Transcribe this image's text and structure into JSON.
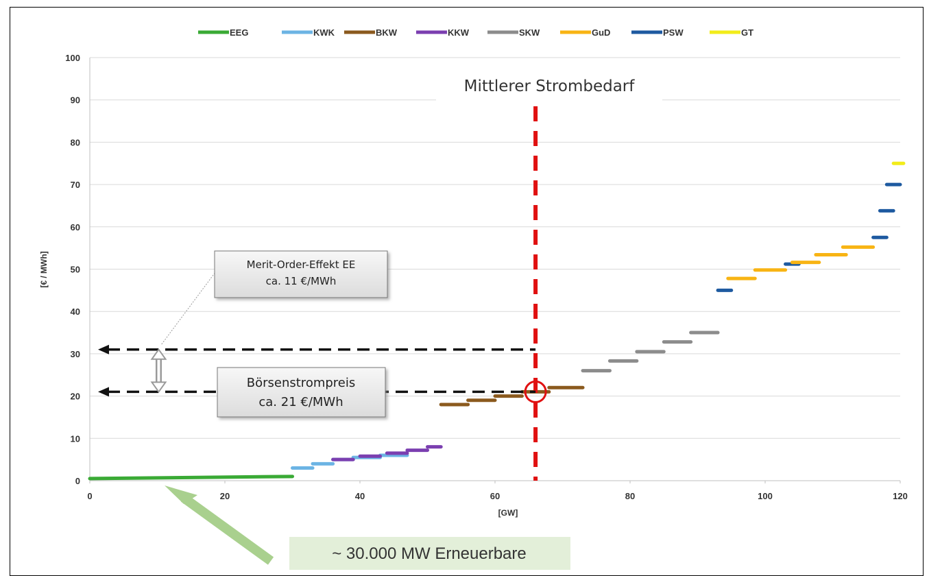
{
  "chart_data": {
    "type": "line",
    "xlabel": "[GW]",
    "ylabel": "[€ / MWh]",
    "xlim": [
      0,
      120
    ],
    "ylim": [
      0,
      100
    ],
    "x_ticks": [
      "0",
      "20",
      "40",
      "60",
      "80",
      "100",
      "120"
    ],
    "y_ticks": [
      "0",
      "10",
      "20",
      "30",
      "40",
      "50",
      "60",
      "70",
      "80",
      "90",
      "100"
    ],
    "grid": "horizontal",
    "legend_position": "top",
    "legend": [
      {
        "name": "EEG",
        "color": "#3aaa35"
      },
      {
        "name": "KWK",
        "color": "#6cb4e4"
      },
      {
        "name": "BKW",
        "color": "#8b5a1e"
      },
      {
        "name": "KKW",
        "color": "#7b3fb0"
      },
      {
        "name": "SKW",
        "color": "#8c8c8c"
      },
      {
        "name": "GuD",
        "color": "#f8b414"
      },
      {
        "name": "PSW",
        "color": "#1e5aa0"
      },
      {
        "name": "GT",
        "color": "#f2ec1a"
      }
    ],
    "series": [
      {
        "name": "EEG",
        "color": "#3aaa35",
        "segments": [
          [
            0,
            30,
            0.5,
            1.0
          ]
        ]
      },
      {
        "name": "KWK",
        "color": "#6cb4e4",
        "segments": [
          [
            30,
            33,
            3,
            3
          ],
          [
            33,
            36,
            4,
            4
          ],
          [
            36,
            39,
            5,
            5
          ],
          [
            39,
            43,
            5.5,
            5.5
          ],
          [
            43,
            47,
            6,
            6
          ]
        ]
      },
      {
        "name": "KKW",
        "color": "#7b3fb0",
        "segments": [
          [
            36,
            39,
            5,
            5
          ],
          [
            40,
            43,
            5.8,
            5.8
          ],
          [
            44,
            47,
            6.5,
            6.5
          ],
          [
            47,
            50,
            7.2,
            7.2
          ],
          [
            50,
            52,
            8,
            8
          ]
        ]
      },
      {
        "name": "BKW",
        "color": "#8b5a1e",
        "segments": [
          [
            52,
            56,
            18,
            18
          ],
          [
            56,
            60,
            19,
            19
          ],
          [
            60,
            64,
            20,
            20
          ],
          [
            64,
            68,
            21,
            21
          ],
          [
            68,
            73,
            22,
            22
          ]
        ]
      },
      {
        "name": "SKW",
        "color": "#8c8c8c",
        "segments": [
          [
            73,
            77,
            26,
            26
          ],
          [
            77,
            81,
            28.3,
            28.3
          ],
          [
            81,
            85,
            30.5,
            30.5
          ],
          [
            85,
            89,
            32.8,
            32.8
          ],
          [
            89,
            93,
            35,
            35
          ]
        ]
      },
      {
        "name": "PSW",
        "color": "#1e5aa0",
        "segments": [
          [
            93,
            95,
            45,
            45
          ],
          [
            103,
            105,
            51.2,
            51.2
          ],
          [
            116,
            118,
            57.5,
            57.5
          ],
          [
            117,
            119,
            63.8,
            63.8
          ],
          [
            118,
            120,
            70,
            70
          ]
        ]
      },
      {
        "name": "GuD",
        "color": "#f8b414",
        "segments": [
          [
            94.5,
            98.5,
            47.8,
            47.8
          ],
          [
            98.5,
            103,
            49.8,
            49.8
          ],
          [
            104,
            108,
            51.6,
            51.6
          ],
          [
            107.5,
            112,
            53.4,
            53.4
          ],
          [
            111.5,
            116,
            55.2,
            55.2
          ]
        ]
      },
      {
        "name": "GT",
        "color": "#f2ec1a",
        "segments": [
          [
            119,
            120.5,
            75,
            75
          ]
        ]
      }
    ],
    "demand_x": 66,
    "price_levels": [
      31,
      21
    ],
    "annotations": {
      "demand": "Mittlerer Strombedarf",
      "merit_order_line1": "Merit-Order-Effekt EE",
      "merit_order_line2": "ca. 11 €/MWh",
      "price_line1": "Börsenstrompreis",
      "price_line2": "ca. 21 €/MWh",
      "renewables": "~ 30.000 MW Erneuerbare"
    }
  }
}
